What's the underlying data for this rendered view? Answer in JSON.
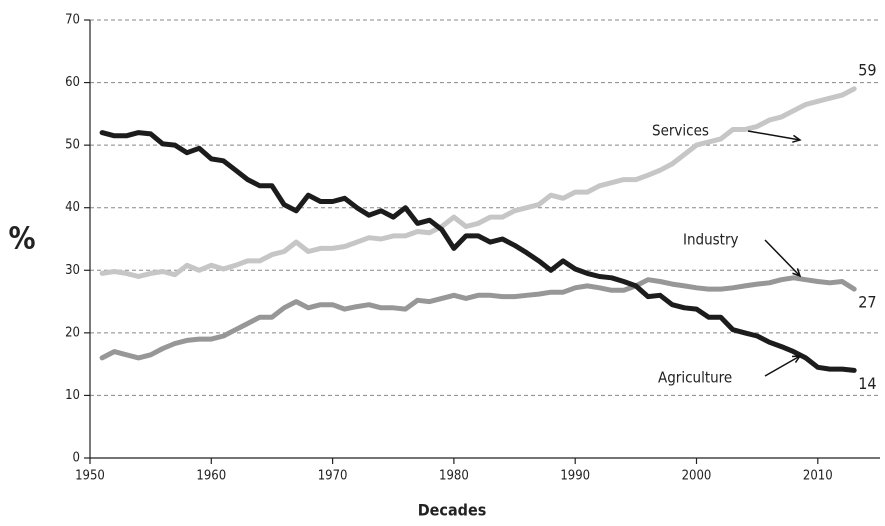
{
  "chart_data": {
    "type": "line",
    "xlabel": "Decades",
    "ylabel": "%",
    "x": [
      1951,
      1952,
      1953,
      1954,
      1955,
      1956,
      1957,
      1958,
      1959,
      1960,
      1961,
      1962,
      1963,
      1964,
      1965,
      1966,
      1967,
      1968,
      1969,
      1970,
      1971,
      1972,
      1973,
      1974,
      1975,
      1976,
      1977,
      1978,
      1979,
      1980,
      1981,
      1982,
      1983,
      1984,
      1985,
      1986,
      1987,
      1988,
      1989,
      1990,
      1991,
      1992,
      1993,
      1994,
      1995,
      1996,
      1997,
      1998,
      1999,
      2000,
      2001,
      2002,
      2003,
      2004,
      2005,
      2006,
      2007,
      2008,
      2009,
      2010,
      2011,
      2012,
      2013
    ],
    "series": [
      {
        "name": "Services",
        "color": "#c6c6c6",
        "values": [
          29.5,
          29.8,
          29.5,
          29,
          29.5,
          29.8,
          29.3,
          30.8,
          30,
          30.8,
          30.2,
          30.8,
          31.5,
          31.5,
          32.5,
          33,
          34.5,
          33,
          33.5,
          33.5,
          33.8,
          34.5,
          35.2,
          35,
          35.5,
          35.5,
          36.2,
          36,
          37,
          38.5,
          37,
          37.5,
          38.5,
          38.5,
          39.5,
          40,
          40.5,
          42,
          41.5,
          42.5,
          42.5,
          43.5,
          44,
          44.5,
          44.5,
          45.2,
          46,
          47,
          48.5,
          50,
          50.5,
          51,
          52.5,
          52.5,
          53,
          54,
          54.5,
          55.5,
          56.5,
          57,
          57.5,
          58,
          59
        ]
      },
      {
        "name": "Industry",
        "color": "#979797",
        "values": [
          16,
          17,
          16.5,
          16,
          16.5,
          17.5,
          18.3,
          18.8,
          19,
          19,
          19.5,
          20.5,
          21.5,
          22.5,
          22.5,
          24,
          25,
          24,
          24.5,
          24.5,
          23.8,
          24.2,
          24.5,
          24,
          24,
          23.8,
          25.2,
          25,
          25.5,
          26,
          25.5,
          26,
          26,
          25.8,
          25.8,
          26,
          26.2,
          26.5,
          26.5,
          27.2,
          27.5,
          27.2,
          26.8,
          26.8,
          27.5,
          28.5,
          28.2,
          27.8,
          27.5,
          27.2,
          27,
          27,
          27.2,
          27.5,
          27.8,
          28,
          28.5,
          28.8,
          28.5,
          28.2,
          28,
          28.2,
          27
        ]
      },
      {
        "name": "Agriculture",
        "color": "#1c1c1c",
        "values": [
          52,
          51.5,
          51.5,
          52,
          51.8,
          50.2,
          50,
          48.8,
          49.5,
          47.8,
          47.5,
          46,
          44.5,
          43.5,
          43.5,
          40.5,
          39.5,
          42,
          41,
          41,
          41.5,
          40,
          38.8,
          39.5,
          38.5,
          40,
          37.5,
          38,
          36.5,
          33.5,
          35.5,
          35.5,
          34.5,
          35,
          34,
          32.8,
          31.5,
          30,
          31.5,
          30.2,
          29.5,
          29,
          28.8,
          28.2,
          27.5,
          25.8,
          26,
          24.5,
          24,
          23.8,
          22.5,
          22.5,
          20.5,
          20,
          19.5,
          18.5,
          17.8,
          17,
          16,
          14.5,
          14.2,
          14.2,
          14
        ]
      }
    ],
    "xlim": [
      1950,
      2014
    ],
    "xticks": [
      1950,
      1960,
      1970,
      1980,
      1990,
      2000,
      2010
    ],
    "ylim": [
      0,
      70
    ],
    "yticks": [
      0,
      10,
      20,
      30,
      40,
      50,
      60,
      70
    ],
    "grid": true
  }
}
